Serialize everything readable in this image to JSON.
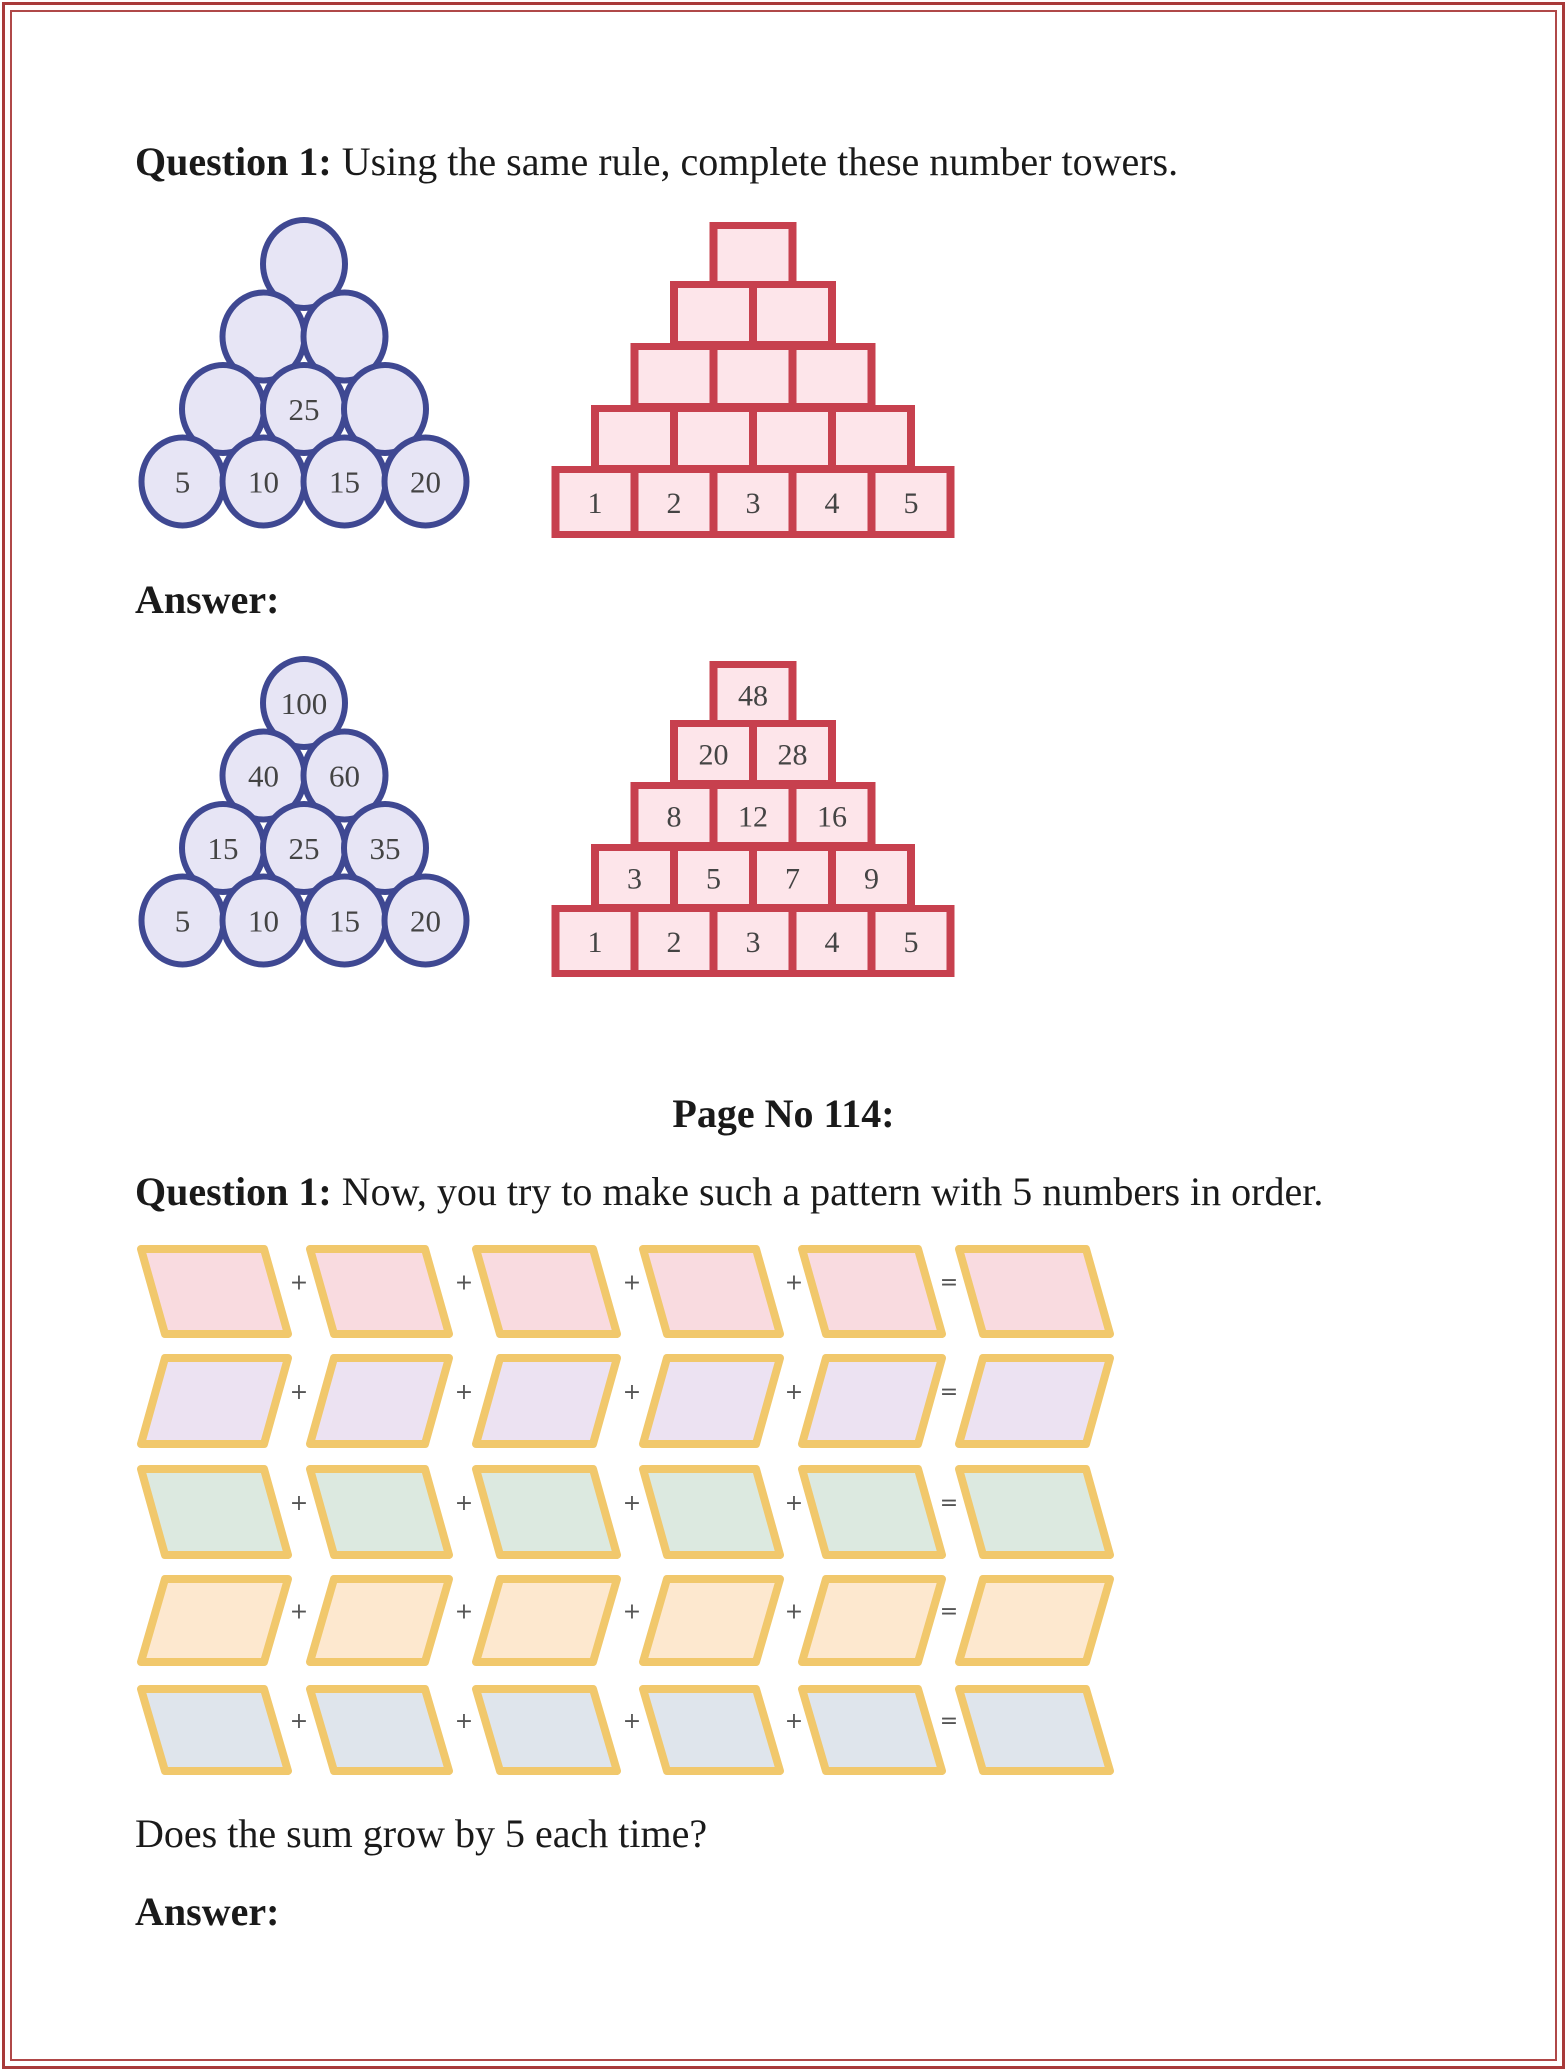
{
  "question1": {
    "label": "Question 1:",
    "text": " Using the same rule, complete these number towers."
  },
  "towers_question": {
    "circle_tower": [
      [
        ""
      ],
      [
        "",
        ""
      ],
      [
        "",
        "25",
        ""
      ],
      [
        "5",
        "10",
        "15",
        "20"
      ]
    ],
    "square_tower": [
      [
        ""
      ],
      [
        "",
        ""
      ],
      [
        "",
        "",
        ""
      ],
      [
        "",
        "",
        "",
        ""
      ],
      [
        "1",
        "2",
        "3",
        "4",
        "5"
      ]
    ]
  },
  "answer1_label": "Answer:",
  "towers_answer": {
    "circle_tower": [
      [
        "100"
      ],
      [
        "40",
        "60"
      ],
      [
        "15",
        "25",
        "35"
      ],
      [
        "5",
        "10",
        "15",
        "20"
      ]
    ],
    "square_tower": [
      [
        "48"
      ],
      [
        "20",
        "28"
      ],
      [
        "8",
        "12",
        "16"
      ],
      [
        "3",
        "5",
        "7",
        "9"
      ],
      [
        "1",
        "2",
        "3",
        "4",
        "5"
      ]
    ]
  },
  "page_heading": "Page No 114:",
  "question2": {
    "label": "Question 1:",
    "text": " Now, you try to make such a pattern with 5 numbers in order."
  },
  "pattern_grid": {
    "operators": [
      "+",
      "+",
      "+",
      "+",
      "="
    ],
    "row_colors": [
      "#f9dbe0",
      "#ece2f2",
      "#dce9e0",
      "#fde8cf",
      "#dfe5ec"
    ],
    "border_color": "#f1c86c"
  },
  "colors": {
    "circle_fill": "#e7e5f5",
    "circle_stroke": "#3f4892",
    "square_fill": "#fde5ea",
    "square_stroke": "#c7404e",
    "frame": "#a83a3a"
  },
  "question3": "Does the sum grow by 5 each time?",
  "answer2_label": "Answer:"
}
